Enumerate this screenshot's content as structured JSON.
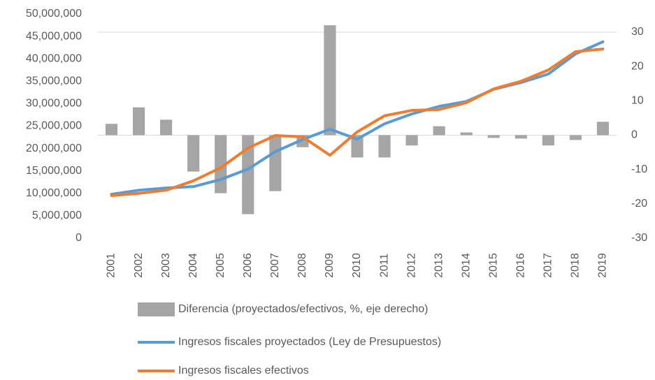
{
  "chart_data": {
    "type": "bar-line",
    "categories": [
      "2001",
      "2002",
      "2003",
      "2004",
      "2005",
      "2006",
      "2007",
      "2008",
      "2009",
      "2010",
      "2011",
      "2012",
      "2013",
      "2014",
      "2015",
      "2016",
      "2017",
      "2018",
      "2019"
    ],
    "series": [
      {
        "name": "Diferencia (proyectados/efectivos, %, eje derecho)",
        "type": "bar",
        "axis": "y2",
        "color": "#a5a5a5",
        "values": [
          3.3,
          8.1,
          4.5,
          -10.6,
          -16.9,
          -23,
          -16.3,
          -3.5,
          32,
          -6.5,
          -6.5,
          -3,
          2.6,
          0.8,
          -0.8,
          -1,
          -3,
          -1.4,
          3.9
        ]
      },
      {
        "name": "Ingresos fiscales proyectados (Ley de Presupuestos)",
        "type": "line",
        "color": "#5b9bd5",
        "values": [
          9800000,
          10700000,
          11200000,
          11500000,
          13100000,
          15400000,
          19300000,
          22000000,
          24300000,
          22100000,
          25500000,
          27700000,
          29400000,
          30500000,
          33200000,
          34700000,
          36600000,
          41100000,
          43800000
        ]
      },
      {
        "name": "Ingresos fiscales efectivos",
        "type": "line",
        "color": "#ed7d31",
        "values": [
          9500000,
          10000000,
          10700000,
          12800000,
          15700000,
          20100000,
          22900000,
          22600000,
          18500000,
          23700000,
          27300000,
          28500000,
          28700000,
          30200000,
          33300000,
          35000000,
          37500000,
          41600000,
          42200000
        ]
      }
    ],
    "ylim": [
      0,
      50000000
    ],
    "yticks": [
      0,
      {
        "value": 5000000,
        "label": "5,000,000"
      },
      {
        "value": 10000000,
        "label": "10,000,000"
      },
      {
        "value": 15000000,
        "label": "15,000,000"
      },
      {
        "value": 20000000,
        "label": "20,000,000"
      },
      {
        "value": 25000000,
        "label": "25,000,000"
      },
      {
        "value": 30000000,
        "label": "30,000,000"
      },
      {
        "value": 35000000,
        "label": "35,000,000"
      },
      {
        "value": 40000000,
        "label": "40,000,000"
      },
      {
        "value": 45000000,
        "label": "45,000,000"
      },
      {
        "value": 50000000,
        "label": "50,000,000"
      }
    ],
    "y2lim": [
      -30,
      30
    ],
    "y2ticks": [
      -30,
      -20,
      -10,
      0,
      10,
      20,
      30
    ]
  }
}
